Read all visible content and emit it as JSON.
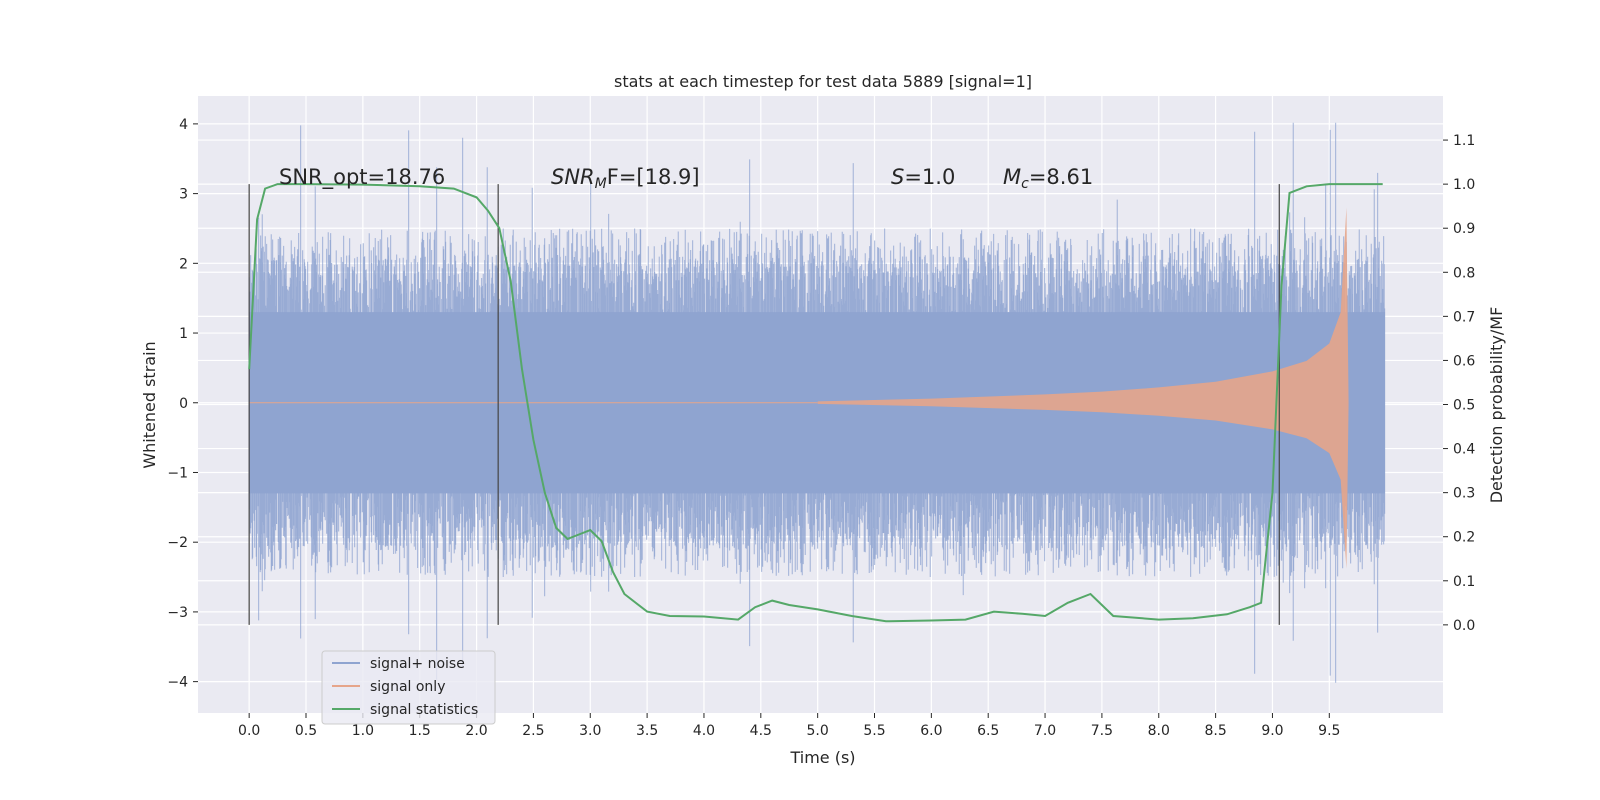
{
  "chart_data": {
    "type": "line",
    "title": "stats at each timestep for test data 5889 [signal=1]",
    "xlabel": "Time (s)",
    "ylabel": "Whitened strain",
    "y2label": "Detection probability/MF",
    "xlim": [
      -0.45,
      10.5
    ],
    "ylim": [
      -4.45,
      4.4
    ],
    "y2lim": [
      -0.2,
      1.2
    ],
    "x_ticks": [
      0.0,
      0.5,
      1.0,
      1.5,
      2.0,
      2.5,
      3.0,
      3.5,
      4.0,
      4.5,
      5.0,
      5.5,
      6.0,
      6.5,
      7.0,
      7.5,
      8.0,
      8.5,
      9.0,
      9.5
    ],
    "x_tick_labels": [
      "0.0",
      "0.5",
      "1.0",
      "1.5",
      "2.0",
      "2.5",
      "3.0",
      "3.5",
      "4.0",
      "4.5",
      "5.0",
      "5.5",
      "6.0",
      "6.5",
      "7.0",
      "7.5",
      "8.0",
      "8.5",
      "9.0",
      "9.5"
    ],
    "y_ticks": [
      4,
      3,
      2,
      1,
      0,
      -1,
      -2,
      -3,
      -4
    ],
    "y_tick_labels": [
      "4",
      "3",
      "2",
      "1",
      "0",
      "−1",
      "−2",
      "−3",
      "−4"
    ],
    "y2_ticks": [
      1.1,
      1.0,
      0.9,
      0.8,
      0.7,
      0.6,
      0.5,
      0.4,
      0.3,
      0.2,
      0.1,
      0.0
    ],
    "y2_tick_labels": [
      "1.1",
      "1.0",
      "0.9",
      "0.8",
      "0.7",
      "0.6",
      "0.5",
      "0.4",
      "0.3",
      "0.2",
      "0.1",
      "0.0"
    ],
    "grid": true,
    "legend_position": "lower-left",
    "legend": [
      {
        "label": "signal+ noise",
        "color": "#8fa4d0"
      },
      {
        "label": "signal only",
        "color": "#e6a58a"
      },
      {
        "label": "signal statistics",
        "color": "#55a868"
      }
    ],
    "annotations": {
      "snr_opt": "SNR_opt=18.76",
      "snr_mf_prefix": "SNR",
      "snr_mf_sub": "M",
      "snr_mf_suffix": "F=[18.9]",
      "s_prefix": "S",
      "s_suffix": "=1.0",
      "mc_prefix": "M",
      "mc_sub": "c",
      "mc_suffix": "=8.61"
    },
    "vertical_markers_x": [
      0.0,
      2.19,
      9.06
    ],
    "noise_series": {
      "name": "signal+ noise",
      "color": "#8fa4d0",
      "x_range": [
        0.0,
        9.99
      ],
      "typical_envelope": [
        -2.5,
        2.5
      ],
      "peak_envelope": [
        -4.05,
        4.05
      ]
    },
    "signal_series": {
      "name": "signal only",
      "color": "#e6a58a",
      "envelope_x": [
        5.0,
        6.0,
        7.0,
        7.5,
        8.0,
        8.5,
        9.0,
        9.3,
        9.5,
        9.6,
        9.65,
        9.67
      ],
      "envelope_amplitude": [
        0.02,
        0.06,
        0.12,
        0.16,
        0.22,
        0.3,
        0.45,
        0.6,
        0.85,
        1.3,
        2.8,
        0.0
      ]
    },
    "series": [
      {
        "name": "signal statistics",
        "color": "#55a868",
        "x": [
          0.0,
          0.07,
          0.14,
          0.25,
          0.5,
          1.0,
          1.5,
          1.8,
          2.0,
          2.1,
          2.2,
          2.3,
          2.4,
          2.5,
          2.6,
          2.7,
          2.8,
          2.9,
          3.0,
          3.1,
          3.2,
          3.3,
          3.5,
          3.7,
          4.0,
          4.3,
          4.45,
          4.6,
          4.75,
          5.0,
          5.3,
          5.6,
          6.0,
          6.3,
          6.55,
          6.8,
          7.0,
          7.2,
          7.4,
          7.6,
          8.0,
          8.3,
          8.6,
          8.8,
          8.9,
          9.0,
          9.08,
          9.15,
          9.3,
          9.5,
          9.7,
          9.97
        ],
        "y": [
          0.58,
          0.92,
          0.99,
          1.0,
          1.0,
          0.999,
          0.995,
          0.99,
          0.97,
          0.94,
          0.9,
          0.78,
          0.58,
          0.42,
          0.3,
          0.22,
          0.195,
          0.205,
          0.215,
          0.19,
          0.12,
          0.07,
          0.03,
          0.02,
          0.019,
          0.012,
          0.04,
          0.055,
          0.045,
          0.035,
          0.02,
          0.008,
          0.01,
          0.012,
          0.03,
          0.025,
          0.02,
          0.05,
          0.07,
          0.02,
          0.012,
          0.015,
          0.024,
          0.04,
          0.05,
          0.3,
          0.77,
          0.98,
          0.995,
          1.0,
          1.0,
          1.0
        ]
      }
    ]
  }
}
